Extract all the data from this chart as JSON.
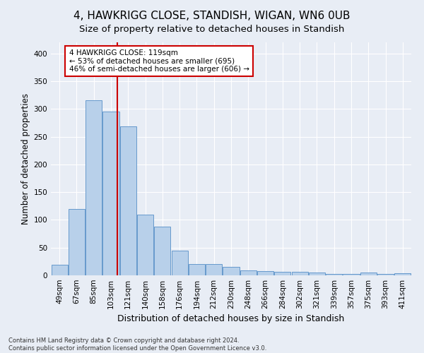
{
  "title": "4, HAWKRIGG CLOSE, STANDISH, WIGAN, WN6 0UB",
  "subtitle": "Size of property relative to detached houses in Standish",
  "xlabel": "Distribution of detached houses by size in Standish",
  "ylabel": "Number of detached properties",
  "categories": [
    "49sqm",
    "67sqm",
    "85sqm",
    "103sqm",
    "121sqm",
    "140sqm",
    "158sqm",
    "176sqm",
    "194sqm",
    "212sqm",
    "230sqm",
    "248sqm",
    "266sqm",
    "284sqm",
    "302sqm",
    "321sqm",
    "339sqm",
    "357sqm",
    "375sqm",
    "393sqm",
    "411sqm"
  ],
  "values": [
    19,
    120,
    315,
    295,
    268,
    109,
    88,
    45,
    20,
    20,
    15,
    9,
    8,
    7,
    6,
    5,
    2,
    3,
    5,
    2,
    4
  ],
  "bar_color": "#b8d0ea",
  "bar_edge_color": "#6699cc",
  "marker_label": "4 HAWKRIGG CLOSE: 119sqm",
  "pct_smaller": "53% of detached houses are smaller (695)",
  "pct_larger": "46% of semi-detached houses are larger (606)",
  "vline_color": "#cc0000",
  "annotation_box_color": "#cc0000",
  "background_color": "#e8edf5",
  "plot_bg_color": "#e8edf5",
  "grid_color": "#ffffff",
  "footer": "Contains HM Land Registry data © Crown copyright and database right 2024.\nContains public sector information licensed under the Open Government Licence v3.0.",
  "ylim": [
    0,
    420
  ],
  "title_fontsize": 11,
  "subtitle_fontsize": 9.5,
  "xlabel_fontsize": 9,
  "ylabel_fontsize": 8.5,
  "tick_fontsize": 7.5,
  "annotation_fontsize": 7.5,
  "footer_fontsize": 6
}
